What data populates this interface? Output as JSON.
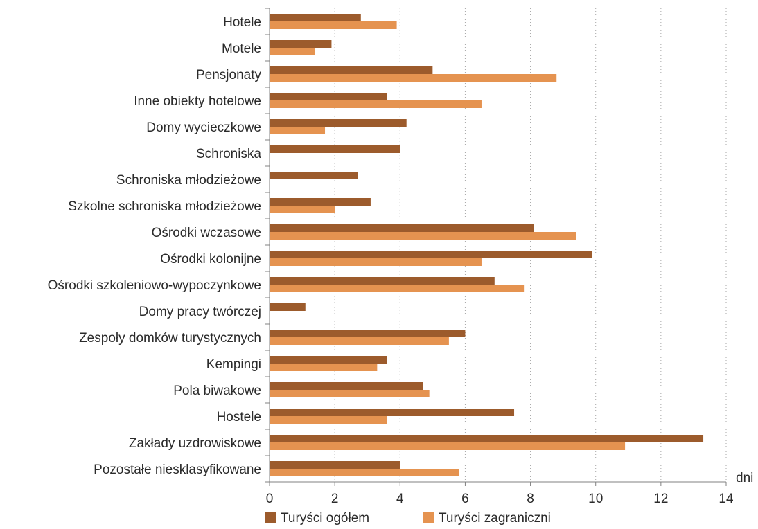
{
  "chart_data": {
    "type": "bar",
    "orientation": "horizontal",
    "categories": [
      "Hotele",
      "Motele",
      "Pensjonaty",
      "Inne obiekty hotelowe",
      "Domy wycieczkowe",
      "Schroniska",
      "Schroniska młodzieżowe",
      "Szkolne schroniska młodzieżowe",
      "Ośrodki wczasowe",
      "Ośrodki kolonijne",
      "Ośrodki szkoleniowo-wypoczynkowe",
      "Domy pracy twórczej",
      "Zespoły domków turystycznych",
      "Kempingi",
      "Pola biwakowe",
      "Hostele",
      "Zakłady uzdrowiskowe",
      "Pozostałe niesklasyfikowane"
    ],
    "series": [
      {
        "name": "Turyści ogółem",
        "color": "#9c5b2c",
        "values": [
          2.8,
          1.9,
          5.0,
          3.6,
          4.2,
          4.0,
          2.7,
          3.1,
          8.1,
          9.9,
          6.9,
          1.1,
          6.0,
          3.6,
          4.7,
          7.5,
          13.3,
          4.0
        ]
      },
      {
        "name": "Turyści zagraniczni",
        "color": "#e59350",
        "values": [
          3.9,
          1.4,
          8.8,
          6.5,
          1.7,
          null,
          null,
          2.0,
          9.4,
          6.5,
          7.8,
          null,
          5.5,
          3.3,
          4.9,
          3.6,
          10.9,
          5.8
        ]
      }
    ],
    "xlim": [
      0,
      14
    ],
    "xticks": [
      0,
      2,
      4,
      6,
      8,
      10,
      12,
      14
    ],
    "xlabel": "dni",
    "grid": "vertical-dotted",
    "legend": "bottom"
  }
}
